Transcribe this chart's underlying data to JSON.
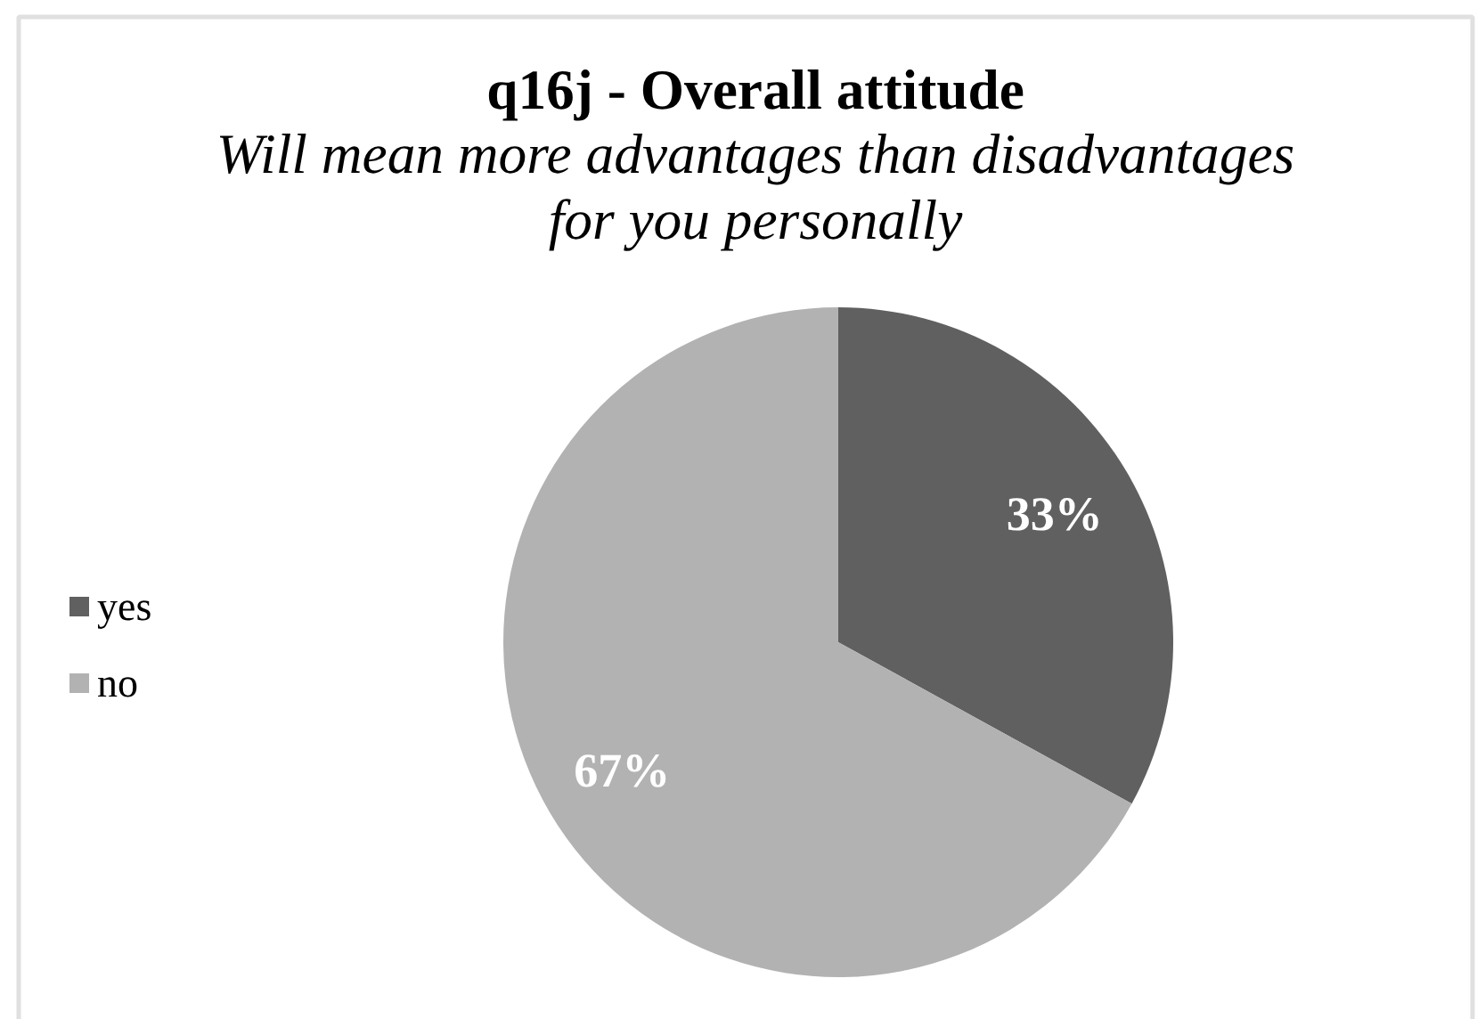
{
  "chart_data": {
    "type": "pie",
    "title": "q16j - Overall attitude",
    "subtitle": "Will mean more advantages than disadvantages\nfor you personally",
    "categories": [
      "yes",
      "no"
    ],
    "values": [
      33,
      67
    ],
    "colors": [
      "#606060",
      "#b2b2b2"
    ],
    "value_labels": [
      "33%",
      "67%"
    ],
    "legend": "left"
  }
}
